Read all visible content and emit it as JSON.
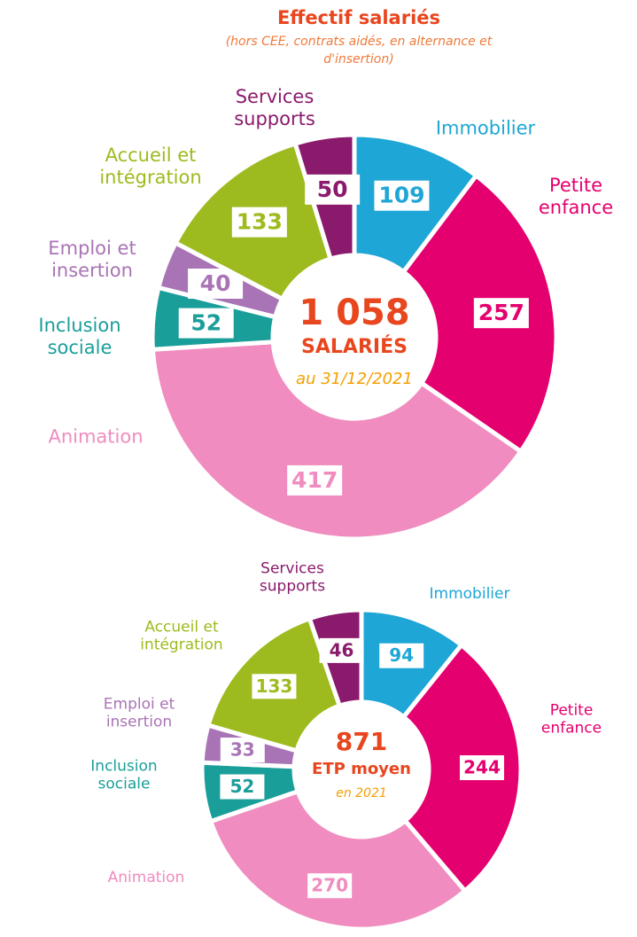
{
  "chart_data": [
    {
      "type": "donut",
      "title": "Effectif salariés",
      "subtitle": "(hors CEE, contrats aidés, en alternance et d'insertion)",
      "center_texts": [
        "1 058",
        "SALARIÉS",
        "au 31/12/2021"
      ],
      "categories": [
        "Immobilier",
        "Petite enfance",
        "Animation",
        "Inclusion sociale",
        "Emploi et insertion",
        "Accueil et intégration",
        "Services supports"
      ],
      "values": [
        109,
        257,
        417,
        52,
        40,
        133,
        50
      ],
      "colors": [
        "#1ea6d6",
        "#e5006f",
        "#f08cbf",
        "#1a9e9a",
        "#a974b5",
        "#9dbb1e",
        "#8a1a6c"
      ]
    },
    {
      "type": "donut",
      "center_texts": [
        "871",
        "ETP moyen",
        "en 2021"
      ],
      "categories": [
        "Immobilier",
        "Petite enfance",
        "Animation",
        "Inclusion sociale",
        "Emploi et insertion",
        "Accueil et intégration",
        "Services supports"
      ],
      "values": [
        94,
        244,
        270,
        52,
        33,
        133,
        46
      ],
      "colors": [
        "#1ea6d6",
        "#e5006f",
        "#f08cbf",
        "#1a9e9a",
        "#a974b5",
        "#9dbb1e",
        "#8a1a6c"
      ]
    }
  ]
}
